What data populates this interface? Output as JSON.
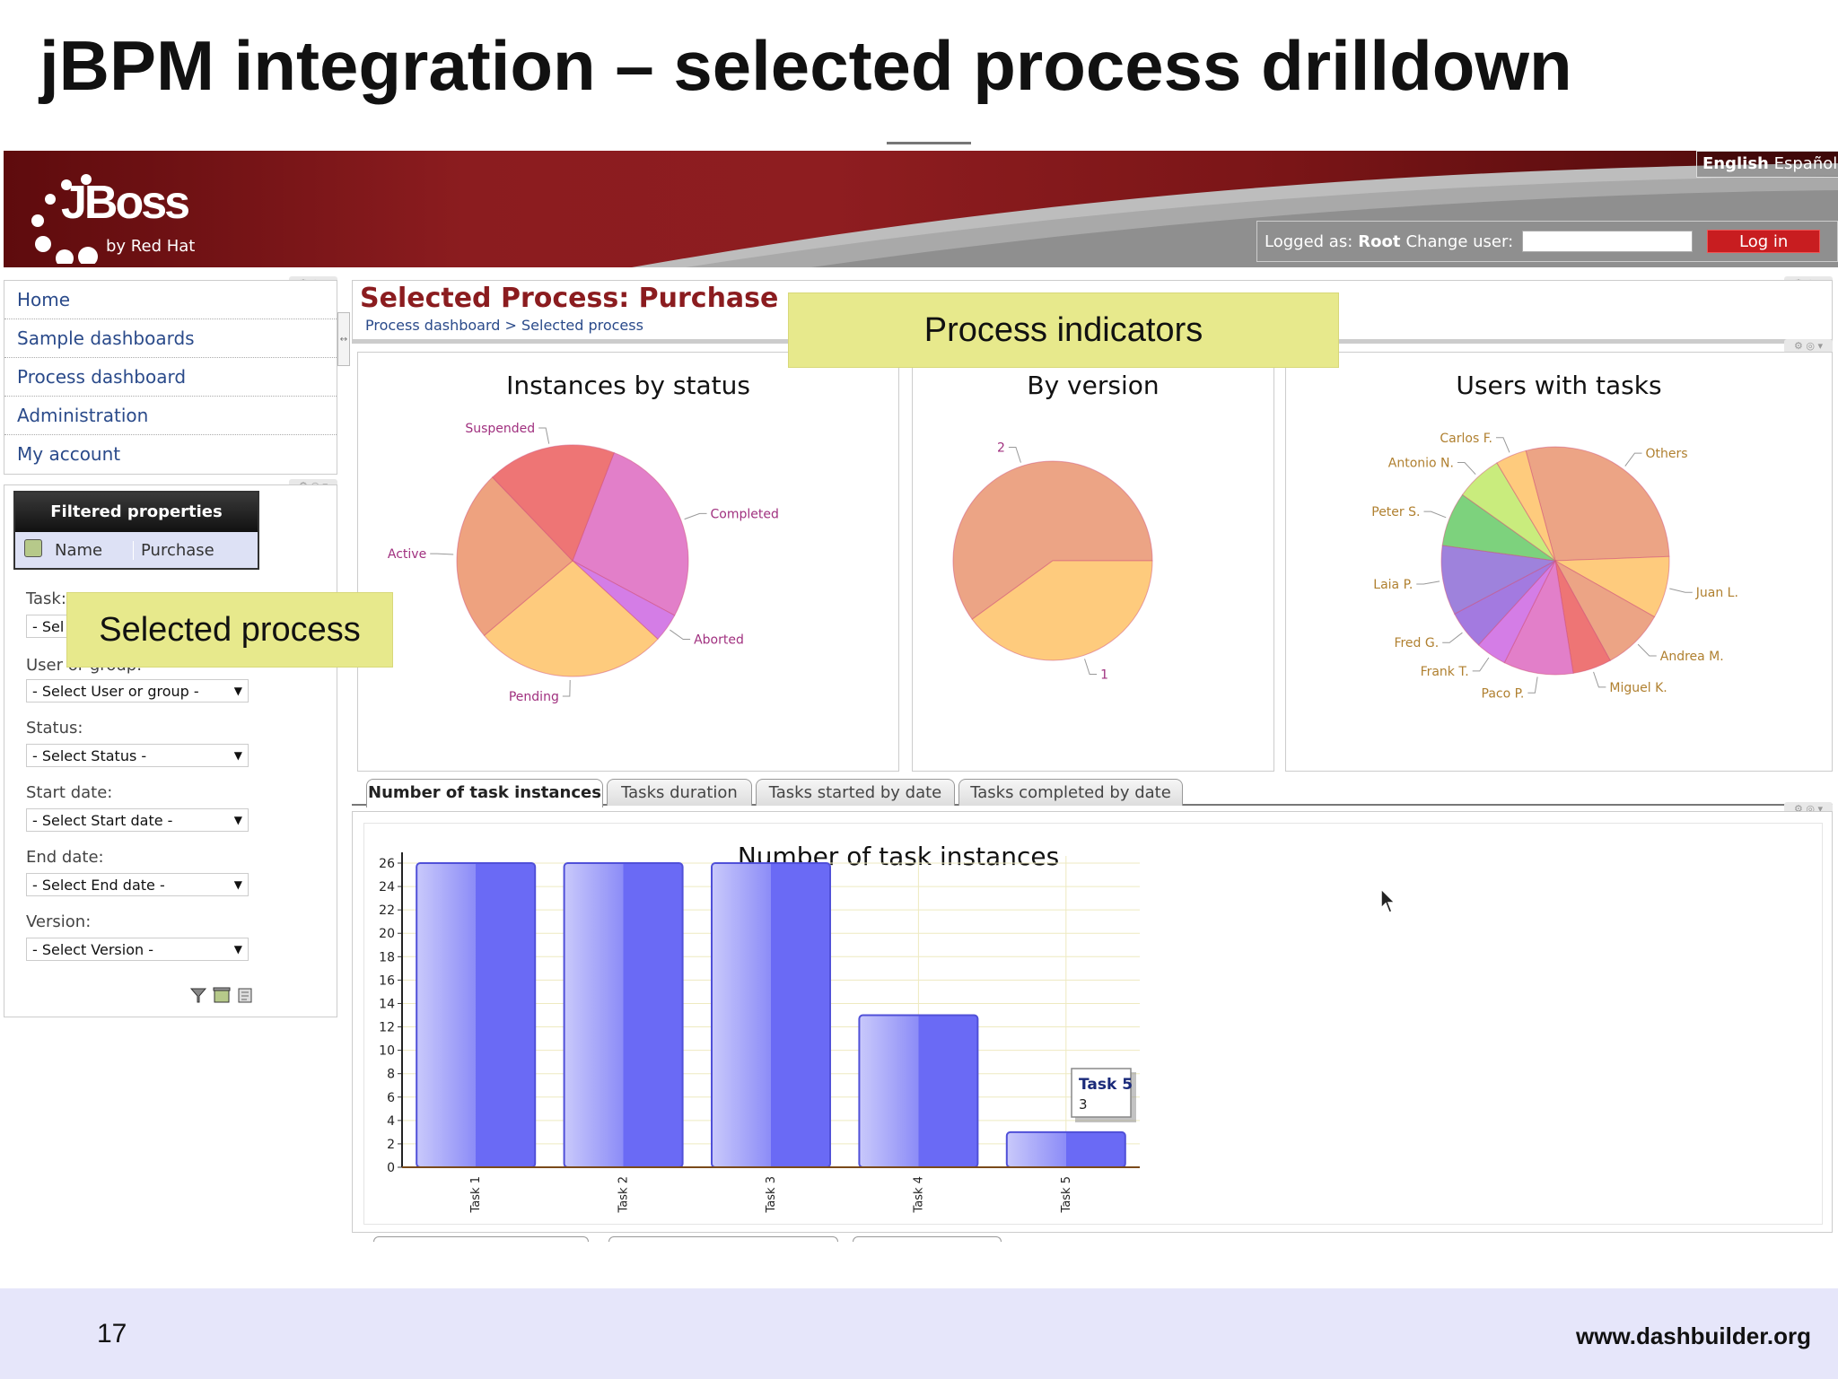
{
  "slide": {
    "title": "jBPM integration – selected process drilldown",
    "page_number": "17",
    "website": "www.dashbuilder.org"
  },
  "header": {
    "logo_text": "JBoss",
    "logo_sub": "by Red Hat",
    "lang_english": "English",
    "lang_spanish": "Español",
    "logged_as_label": "Logged as:",
    "logged_user": "Root",
    "change_user_label": "Change user:",
    "login_button": "Log in",
    "colors": {
      "brand": "#8b1c1f",
      "login": "#c81d20"
    }
  },
  "nav": {
    "items": [
      "Home",
      "Sample dashboards",
      "Process dashboard",
      "Administration",
      "My account"
    ]
  },
  "filter": {
    "panel_title": "Filtered properties",
    "row_name": "Name",
    "row_value": "Purchase",
    "task_label": "Task:",
    "task_select": "- Sel",
    "user_label": "User or group:",
    "user_select": "- Select User or group -",
    "status_label": "Status:",
    "status_select": "- Select Status -",
    "start_label": "Start date:",
    "start_select": "- Select Start date -",
    "end_label": "End date:",
    "end_select": "- Select End date -",
    "version_label": "Version:",
    "version_select": "- Select Version -"
  },
  "callouts": {
    "process_indicators": "Process indicators",
    "selected_process": "Selected process"
  },
  "main": {
    "title": "Selected Process: Purchase",
    "breadcrumb": "Process dashboard > Selected process",
    "tabs": [
      "Number of task instances",
      "Tasks duration",
      "Tasks started by date",
      "Tasks completed by date"
    ]
  },
  "chart_data": [
    {
      "type": "pie",
      "title": "Instances by status",
      "labels": [
        "Completed",
        "Aborted",
        "Pending",
        "Active",
        "Suspended"
      ],
      "values": [
        27,
        4,
        27,
        24,
        18
      ],
      "colors": [
        "#e27fc9",
        "#d47de6",
        "#fecb7d",
        "#eea27f",
        "#ee7575"
      ]
    },
    {
      "type": "pie",
      "title": "By version",
      "labels": [
        "2",
        "1"
      ],
      "values": [
        60,
        40
      ],
      "colors": [
        "#eca485",
        "#fecb7d"
      ]
    },
    {
      "type": "pie",
      "title": "Users with tasks",
      "labels": [
        "Others",
        "Juan L.",
        "Andrea M.",
        "Miguel K.",
        "Paco P.",
        "Frank T.",
        "Fred G.",
        "Laia P.",
        "Peter S.",
        "Antonio N.",
        "Carlos F."
      ],
      "values": [
        26,
        8,
        8,
        5,
        9,
        4,
        5,
        9,
        7,
        6,
        4
      ],
      "colors": [
        "#eca485",
        "#fecb7d",
        "#eca485",
        "#ee7575",
        "#e27fc9",
        "#d47de6",
        "#a37ae0",
        "#9e82dc",
        "#7dd27d",
        "#c9ec7d",
        "#fecb7d"
      ]
    },
    {
      "type": "bar",
      "title": "Number of task instances",
      "categories": [
        "Task 1",
        "Task 2",
        "Task 3",
        "Task 4",
        "Task 5"
      ],
      "values": [
        26,
        26,
        26,
        13,
        3
      ],
      "ylim": [
        0,
        26
      ],
      "yticks": [
        0,
        2,
        4,
        6,
        8,
        10,
        12,
        14,
        16,
        18,
        20,
        22,
        24,
        26
      ],
      "tooltip": {
        "label": "Task 5",
        "value": "3"
      },
      "colors": {
        "bar": "#6a6af5",
        "bar_light": "#c9c9fb"
      }
    }
  ]
}
